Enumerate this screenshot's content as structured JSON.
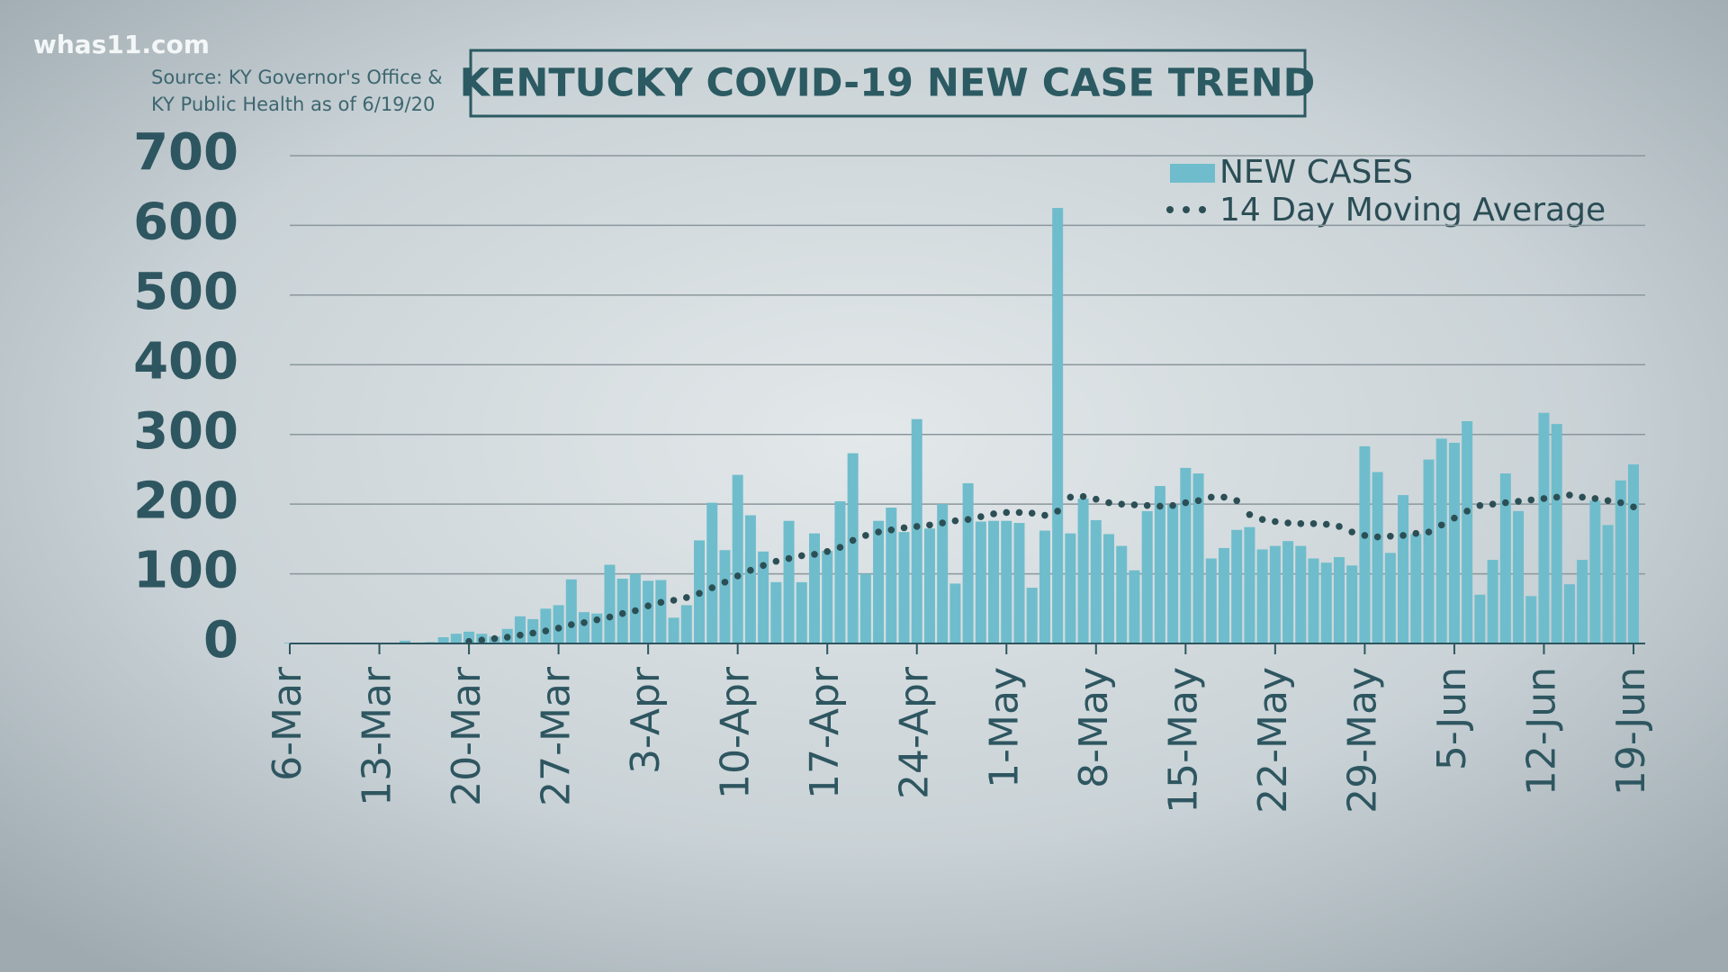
{
  "watermark": "whas11.com",
  "chart_data": {
    "type": "bar",
    "title": "KENTUCKY COVID-19 NEW CASE TREND",
    "subtitle": [
      "Source: KY Governor's Office &",
      "KY Public Health as of 6/19/20"
    ],
    "categories": [
      "6-Mar",
      null,
      null,
      null,
      null,
      null,
      null,
      "13-Mar",
      null,
      null,
      null,
      null,
      null,
      null,
      "20-Mar",
      null,
      null,
      null,
      null,
      null,
      null,
      "27-Mar",
      null,
      null,
      null,
      null,
      null,
      null,
      "3-Apr",
      null,
      null,
      null,
      null,
      null,
      null,
      "10-Apr",
      null,
      null,
      null,
      null,
      null,
      null,
      "17-Apr",
      null,
      null,
      null,
      null,
      null,
      null,
      "24-Apr",
      null,
      null,
      null,
      null,
      null,
      null,
      "1-May",
      null,
      null,
      null,
      null,
      null,
      null,
      "8-May",
      null,
      null,
      null,
      null,
      null,
      null,
      "15-May",
      null,
      null,
      null,
      null,
      null,
      null,
      "22-May",
      null,
      null,
      null,
      null,
      null,
      null,
      "29-May",
      null,
      null,
      null,
      null,
      null,
      null,
      "5-Jun",
      null,
      null,
      null,
      null,
      null,
      null,
      "12-Jun",
      null,
      null,
      null,
      null,
      null,
      null,
      "19-Jun"
    ],
    "series": [
      {
        "name": "NEW CASES",
        "type": "bar",
        "color": "#6fbdcc",
        "values": [
          1,
          0,
          0,
          1,
          1,
          0,
          0,
          1,
          1,
          4,
          1,
          2,
          9,
          14,
          17,
          14,
          10,
          21,
          39,
          35,
          50,
          55,
          92,
          45,
          43,
          113,
          93,
          100,
          90,
          91,
          37,
          55,
          148,
          202,
          134,
          242,
          184,
          132,
          88,
          176,
          88,
          158,
          133,
          204,
          273,
          100,
          176,
          195,
          160,
          322,
          165,
          200,
          86,
          230,
          175,
          176,
          176,
          173,
          80,
          162,
          625,
          158,
          208,
          177,
          157,
          140,
          105,
          190,
          226,
          199,
          252,
          244,
          122,
          137,
          163,
          167,
          135,
          140,
          147,
          140,
          122,
          116,
          124,
          112,
          283,
          246,
          130,
          213,
          157,
          264,
          294,
          288,
          319,
          70,
          120,
          244,
          190,
          68,
          331,
          315,
          85,
          120,
          205,
          170,
          234,
          257
        ]
      },
      {
        "name": "14 Day Moving Average",
        "type": "line",
        "color": "#2c4f55",
        "values": [
          null,
          null,
          null,
          null,
          null,
          null,
          null,
          null,
          null,
          null,
          null,
          null,
          null,
          null,
          3,
          5,
          7,
          9,
          12,
          15,
          18,
          22,
          27,
          30,
          34,
          38,
          43,
          47,
          54,
          59,
          62,
          66,
          72,
          80,
          88,
          97,
          105,
          112,
          118,
          122,
          126,
          128,
          132,
          138,
          148,
          155,
          160,
          163,
          166,
          168,
          170,
          173,
          176,
          178,
          182,
          186,
          188,
          188,
          187,
          184,
          190,
          210,
          211,
          207,
          202,
          200,
          199,
          198,
          197,
          198,
          202,
          205,
          210,
          210,
          205,
          185,
          178,
          175,
          173,
          172,
          172,
          171,
          168,
          160,
          155,
          153,
          154,
          155,
          158,
          160,
          170,
          180,
          190,
          198,
          200,
          202,
          204,
          206,
          208,
          210,
          213,
          210,
          208,
          205,
          202,
          196
        ]
      }
    ],
    "ylim": [
      0,
      700
    ],
    "yticks": [
      0,
      100,
      200,
      300,
      400,
      500,
      600,
      700
    ],
    "grid": true
  }
}
